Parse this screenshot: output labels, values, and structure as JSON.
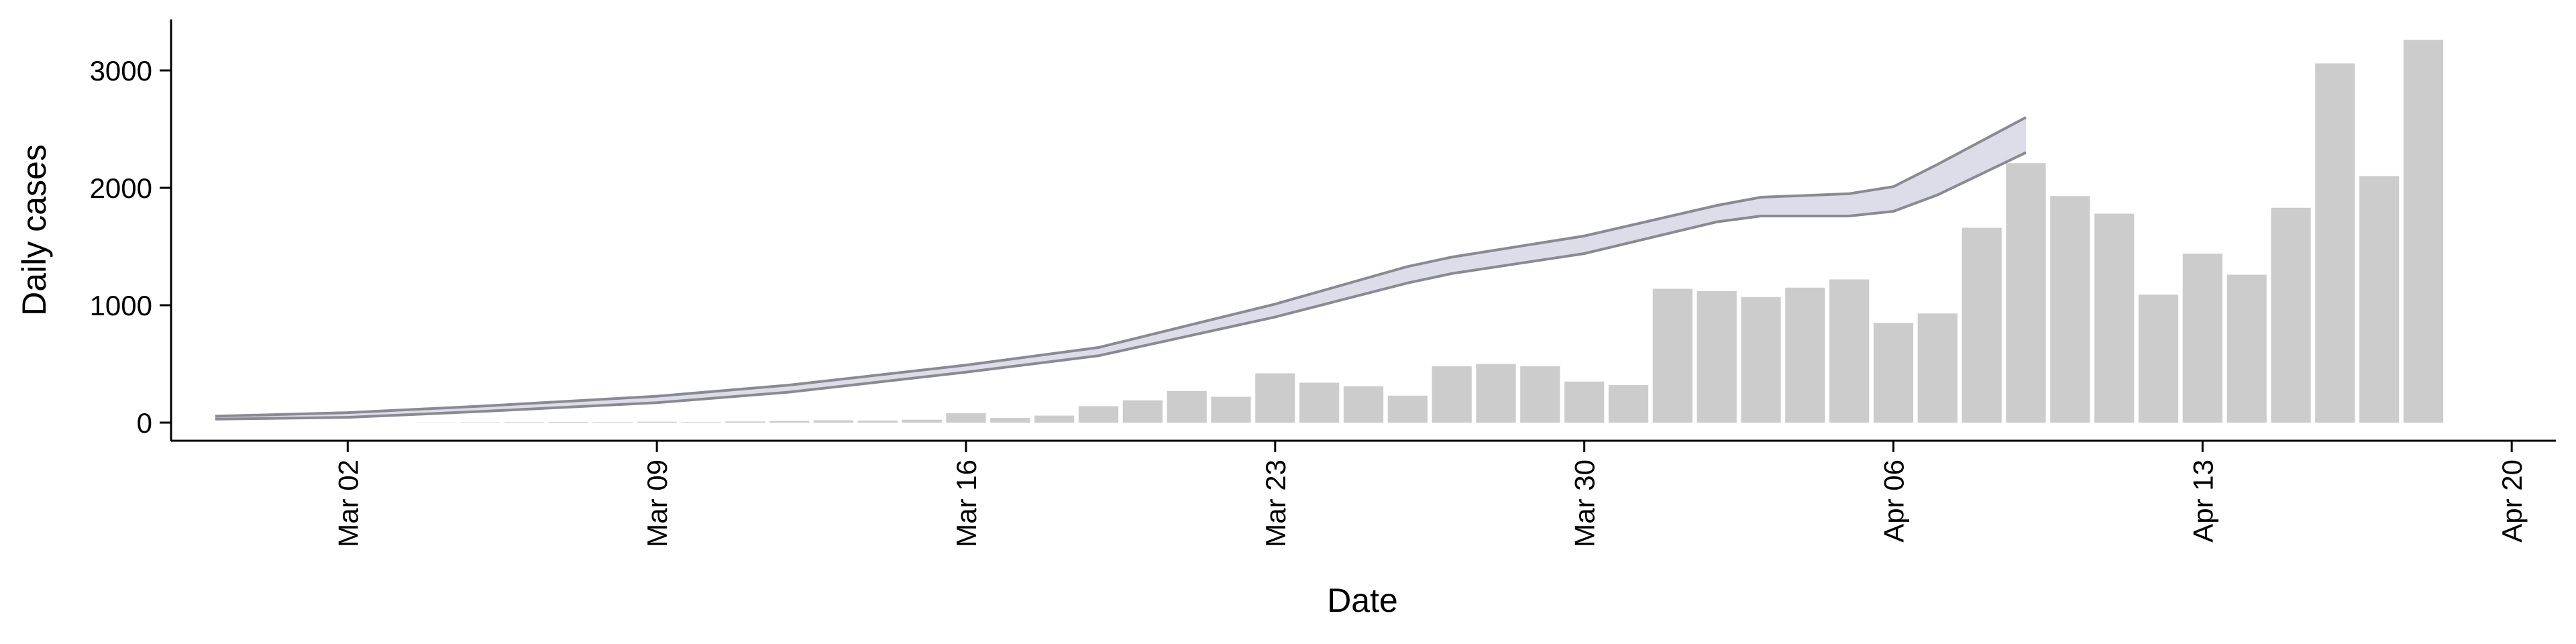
{
  "chart_data": {
    "type": "bar",
    "y_label": "Daily cases",
    "x_label": "Date",
    "x": [
      "Mar 04",
      "Mar 05",
      "Mar 06",
      "Mar 07",
      "Mar 08",
      "Mar 09",
      "Mar 10",
      "Mar 11",
      "Mar 12",
      "Mar 13",
      "Mar 14",
      "Mar 15",
      "Mar 16",
      "Mar 17",
      "Mar 18",
      "Mar 19",
      "Mar 20",
      "Mar 21",
      "Mar 22",
      "Mar 23",
      "Mar 24",
      "Mar 25",
      "Mar 26",
      "Mar 27",
      "Mar 28",
      "Mar 29",
      "Mar 30",
      "Mar 31",
      "Apr 01",
      "Apr 02",
      "Apr 03",
      "Apr 04",
      "Apr 05",
      "Apr 06",
      "Apr 07",
      "Apr 08",
      "Apr 09",
      "Apr 10",
      "Apr 11",
      "Apr 12",
      "Apr 13",
      "Apr 14",
      "Apr 15",
      "Apr 16",
      "Apr 17",
      "Apr 18"
    ],
    "values": [
      2,
      3,
      5,
      6,
      5,
      8,
      5,
      10,
      15,
      20,
      18,
      25,
      80,
      40,
      60,
      140,
      190,
      270,
      220,
      420,
      340,
      310,
      230,
      480,
      500,
      480,
      350,
      320,
      1140,
      1120,
      1070,
      1150,
      1220,
      850,
      930,
      1660,
      2210,
      1930,
      1780,
      1090,
      1440,
      1260,
      1830,
      3060,
      2100,
      3260
    ],
    "color": "#cccccc",
    "series": [
      {
        "type": "line",
        "color": "#8a8a93",
        "x": [
          "Feb 28",
          "Mar 02",
          "Mar 05",
          "Mar 09",
          "Mar 12",
          "Mar 16",
          "Mar 19",
          "Mar 23",
          "Mar 26",
          "Mar 27",
          "Mar 30",
          "Apr 02",
          "Apr 03",
          "Apr 05",
          "Apr 06",
          "Apr 07",
          "Apr 09"
        ],
        "values": [
          55,
          85,
          140,
          225,
          320,
          490,
          640,
          1010,
          1330,
          1410,
          1590,
          1850,
          1920,
          1950,
          2010,
          2200,
          2600
        ]
      },
      {
        "type": "line",
        "color": "#8a8a93",
        "x": [
          "Feb 28",
          "Mar 02",
          "Mar 05",
          "Mar 09",
          "Mar 12",
          "Mar 16",
          "Mar 19",
          "Mar 23",
          "Mar 26",
          "Mar 27",
          "Mar 30",
          "Apr 02",
          "Apr 03",
          "Apr 05",
          "Apr 06",
          "Apr 07",
          "Apr 09"
        ],
        "values": [
          30,
          45,
          95,
          170,
          260,
          430,
          570,
          900,
          1190,
          1270,
          1440,
          1710,
          1760,
          1760,
          1800,
          1940,
          2300
        ]
      }
    ],
    "band_color": "#dcdde9",
    "xlim": [
      "Feb 27",
      "Apr 21"
    ],
    "xticks": [
      "Mar 02",
      "Mar 09",
      "Mar 16",
      "Mar 23",
      "Mar 30",
      "Apr 06",
      "Apr 13",
      "Apr 20"
    ],
    "ylim": [
      -154,
      3434
    ],
    "yticks": [
      0,
      1000,
      2000,
      3000
    ]
  }
}
